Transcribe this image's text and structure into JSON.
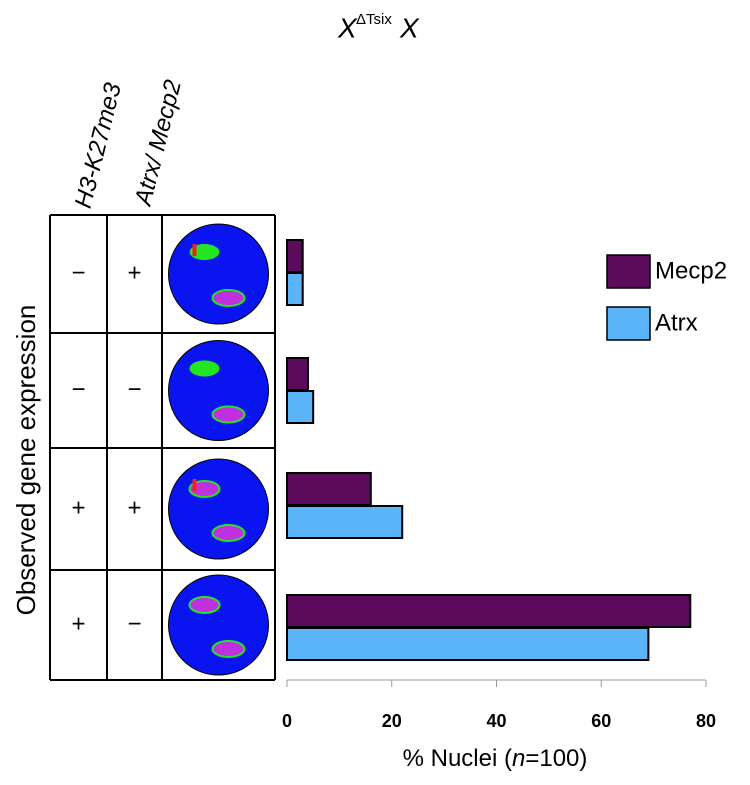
{
  "chart_data": {
    "type": "barh",
    "title": {
      "base": "X",
      "superscript": "ΔTsix",
      "tail": "X"
    },
    "xlabel": {
      "prefix": "% Nuclei (",
      "italic": "n",
      "suffix": "=100)"
    },
    "xlim": [
      0,
      80
    ],
    "xticks": [
      0,
      20,
      40,
      60,
      80
    ],
    "series": [
      {
        "name": "Mecp2",
        "color": "#5c0a5c",
        "values": [
          3,
          4,
          16,
          77
        ]
      },
      {
        "name": "Atrx",
        "color": "#5ab4f7",
        "values": [
          3,
          5,
          22,
          69
        ]
      }
    ],
    "legend": "upper right"
  },
  "table": {
    "headers": [
      "H3-K27me3",
      "Atrx/ Mecp2"
    ],
    "row_label": "Observed gene expression",
    "rows": [
      [
        "−",
        "+"
      ],
      [
        "−",
        "−"
      ],
      [
        "+",
        "+"
      ],
      [
        "+",
        "−"
      ]
    ]
  }
}
